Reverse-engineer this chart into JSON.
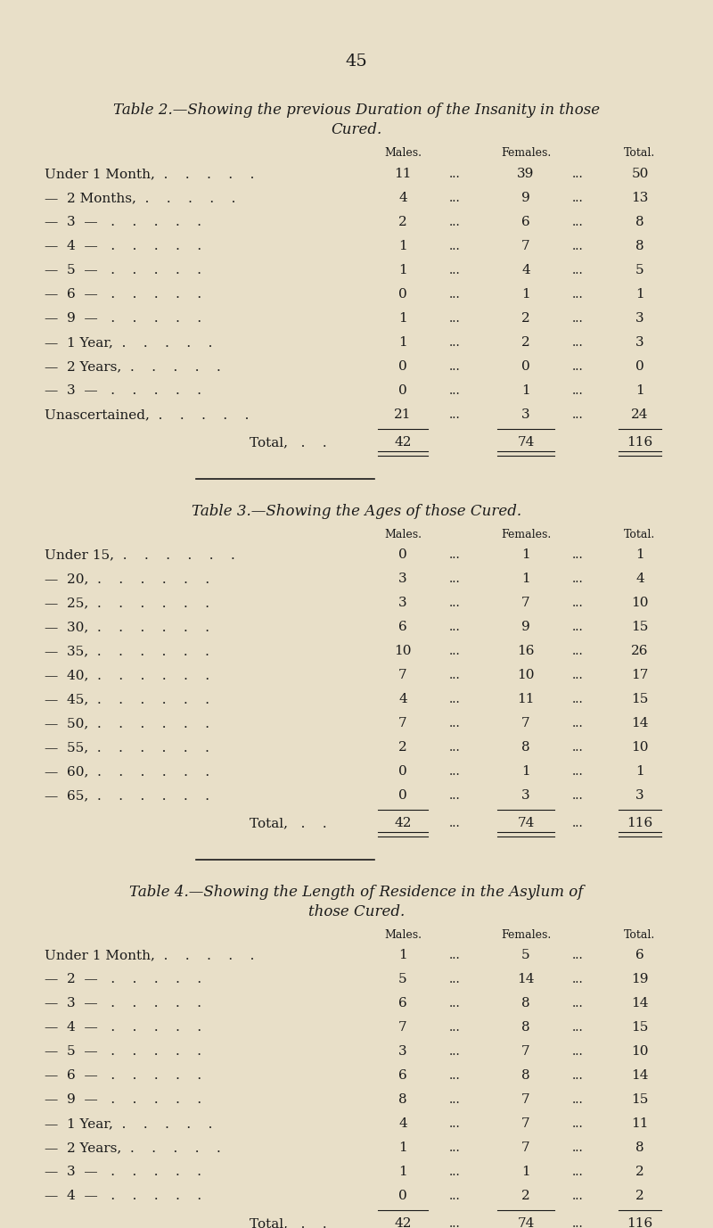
{
  "bg_color": "#e8dfc8",
  "text_color": "#1a1a1a",
  "page_number": "45",
  "table2": {
    "title_line1": "Table 2.—Showing the previous Duration of the Insanity in those",
    "title_line2": "Cured.",
    "rows": [
      {
        "label": "Under 1 Month,  .    .    .    .    .",
        "males": "11",
        "females": "39",
        "total": "50"
      },
      {
        "label": "—  2 Months,  .    .    .    .    .",
        "males": "4",
        "females": "9",
        "total": "13"
      },
      {
        "label": "—  3  —   .    .    .    .    .",
        "males": "2",
        "females": "6",
        "total": "8"
      },
      {
        "label": "—  4  —   .    .    .    .    .",
        "males": "1",
        "females": "7",
        "total": "8"
      },
      {
        "label": "—  5  —   .    .    .    .    .",
        "males": "1",
        "females": "4",
        "total": "5"
      },
      {
        "label": "—  6  —   .    .    .    .    .",
        "males": "0",
        "females": "1",
        "total": "1"
      },
      {
        "label": "—  9  —   .    .    .    .    .",
        "males": "1",
        "females": "2",
        "total": "3"
      },
      {
        "label": "—  1 Year,  .    .    .    .    .",
        "males": "1",
        "females": "2",
        "total": "3"
      },
      {
        "label": "—  2 Years,  .    .    .    .    .",
        "males": "0",
        "females": "0",
        "total": "0"
      },
      {
        "label": "—  3  —   .    .    .    .    .",
        "males": "0",
        "females": "1",
        "total": "1"
      },
      {
        "label": "Unascertained,  .    .    .    .    .",
        "males": "21",
        "females": "3",
        "total": "24"
      }
    ],
    "total_row": {
      "males": "42",
      "females": "74",
      "total": "116"
    }
  },
  "table3": {
    "title_line1": "Table 3.—Showing the Ages of those Cured.",
    "rows": [
      {
        "label": "Under 15,  .    .    .    .    .    .",
        "males": "0",
        "females": "1",
        "total": "1"
      },
      {
        "label": "—  20,  .    .    .    .    .    .",
        "males": "3",
        "females": "1",
        "total": "4"
      },
      {
        "label": "—  25,  .    .    .    .    .    .",
        "males": "3",
        "females": "7",
        "total": "10"
      },
      {
        "label": "—  30,  .    .    .    .    .    .",
        "males": "6",
        "females": "9",
        "total": "15"
      },
      {
        "label": "—  35,  .    .    .    .    .    .",
        "males": "10",
        "females": "16",
        "total": "26"
      },
      {
        "label": "—  40,  .    .    .    .    .    .",
        "males": "7",
        "females": "10",
        "total": "17"
      },
      {
        "label": "—  45,  .    .    .    .    .    .",
        "males": "4",
        "females": "11",
        "total": "15"
      },
      {
        "label": "—  50,  .    .    .    .    .    .",
        "males": "7",
        "females": "7",
        "total": "14"
      },
      {
        "label": "—  55,  .    .    .    .    .    .",
        "males": "2",
        "females": "8",
        "total": "10"
      },
      {
        "label": "—  60,  .    .    .    .    .    .",
        "males": "0",
        "females": "1",
        "total": "1"
      },
      {
        "label": "—  65,  .    .    .    .    .    .",
        "males": "0",
        "females": "3",
        "total": "3"
      }
    ],
    "total_row": {
      "males": "42",
      "females": "74",
      "total": "116"
    }
  },
  "table4": {
    "title_line1": "Table 4.—Showing the Length of Residence in the Asylum of",
    "title_line2": "those Cured.",
    "rows": [
      {
        "label": "Under 1 Month,  .    .    .    .    .",
        "males": "1",
        "females": "5",
        "total": "6"
      },
      {
        "label": "—  2  —   .    .    .    .    .",
        "males": "5",
        "females": "14",
        "total": "19"
      },
      {
        "label": "—  3  —   .    .    .    .    .",
        "males": "6",
        "females": "8",
        "total": "14"
      },
      {
        "label": "—  4  —   .    .    .    .    .",
        "males": "7",
        "females": "8",
        "total": "15"
      },
      {
        "label": "—  5  —   .    .    .    .    .",
        "males": "3",
        "females": "7",
        "total": "10"
      },
      {
        "label": "—  6  —   .    .    .    .    .",
        "males": "6",
        "females": "8",
        "total": "14"
      },
      {
        "label": "—  9  —   .    .    .    .    .",
        "males": "8",
        "females": "7",
        "total": "15"
      },
      {
        "label": "—  1 Year,  .    .    .    .    .",
        "males": "4",
        "females": "7",
        "total": "11"
      },
      {
        "label": "—  2 Years,  .    .    .    .    .",
        "males": "1",
        "females": "7",
        "total": "8"
      },
      {
        "label": "—  3  —   .    .    .    .    .",
        "males": "1",
        "females": "1",
        "total": "2"
      },
      {
        "label": "—  4  —   .    .    .    .    .",
        "males": "0",
        "females": "2",
        "total": "2"
      }
    ],
    "total_row": {
      "males": "42",
      "females": "74",
      "total": "116"
    }
  }
}
